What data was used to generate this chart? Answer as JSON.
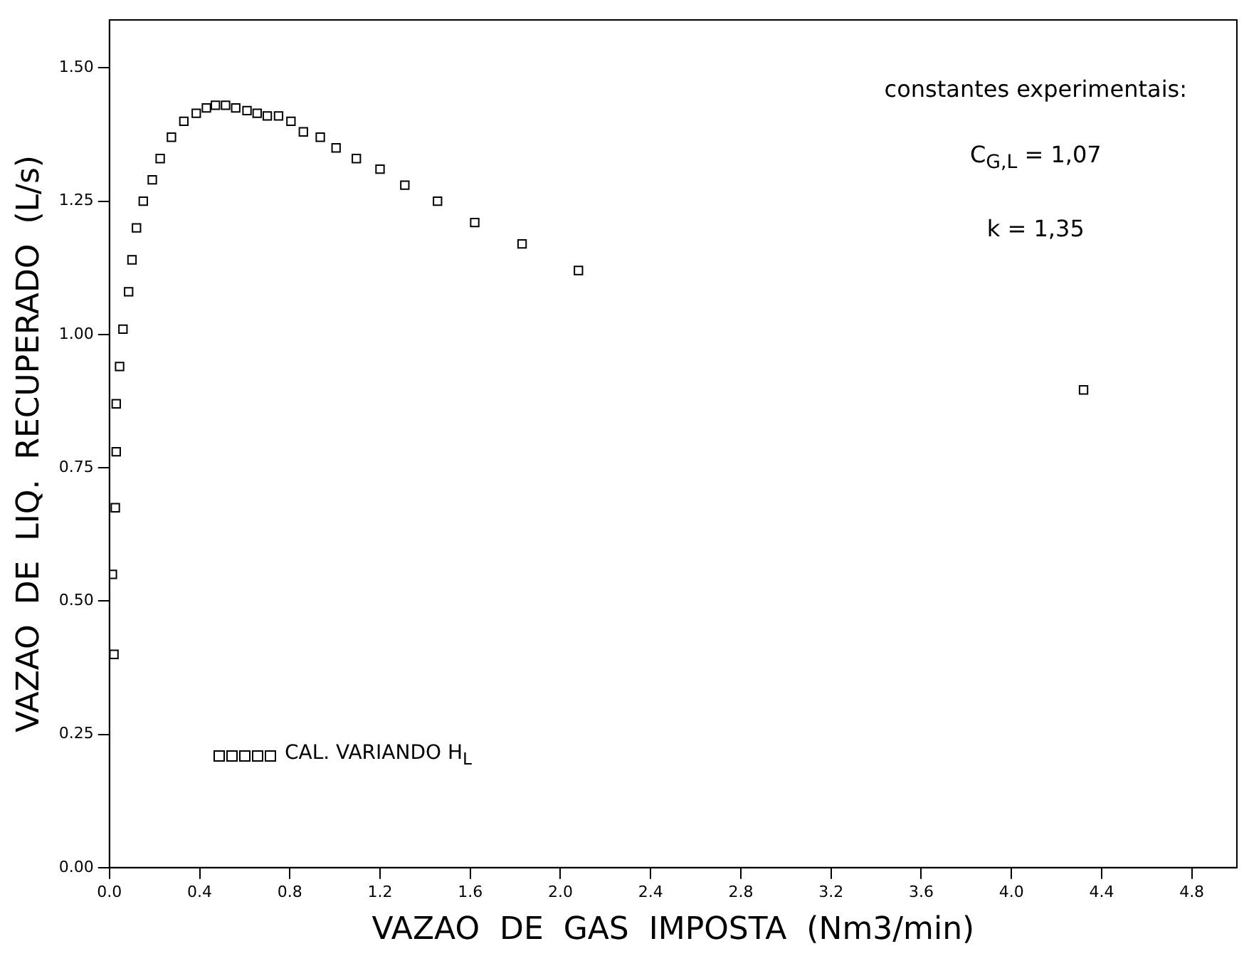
{
  "chart_data": {
    "type": "scatter",
    "xlabel": "VAZAO  DE  GAS  IMPOSTA  (Nm3/min)",
    "ylabel": "VAZAO  DE  LIQ.  RECUPERADO  (L/s)",
    "annotations": [
      "constantes experimentais:",
      "C$_{G,L}$  =  1,07",
      "k  =  1,35"
    ],
    "xlim": [
      0,
      5
    ],
    "ylim": [
      0,
      1.59
    ],
    "xticks": [
      {
        "value": 0,
        "label": "0.0"
      },
      0.4,
      0.8,
      1.2,
      1.6,
      {
        "value": 2,
        "label": "2.0"
      },
      2.4,
      2.8,
      3.2,
      3.6,
      {
        "value": 4,
        "label": "4.0"
      },
      4.4,
      4.8
    ],
    "yticks": [
      {
        "value": 0,
        "label": "0.00"
      },
      0.25,
      {
        "value": 0.5,
        "label": "0.50"
      },
      0.75,
      {
        "value": 1,
        "label": "1.00"
      },
      1.25,
      {
        "value": 1.5,
        "label": "1.50"
      }
    ],
    "grid": false,
    "legend": "bottom left",
    "marker": "square",
    "series": [
      {
        "name": "CAL. VARIANDO H$_{L}$",
        "color": "#000000",
        "x": [
          0.02,
          0.013,
          0.026,
          0.03,
          0.03,
          0.045,
          0.06,
          0.085,
          0.1,
          0.12,
          0.15,
          0.19,
          0.225,
          0.275,
          0.33,
          0.385,
          0.43,
          0.47,
          0.515,
          0.56,
          0.61,
          0.655,
          0.7,
          0.75,
          0.805,
          0.86,
          0.935,
          1.005,
          1.095,
          1.2,
          1.31,
          1.455,
          1.62,
          1.83,
          2.08,
          4.32
        ],
        "values": [
          0.4,
          0.55,
          0.675,
          0.78,
          0.87,
          0.94,
          1.01,
          1.08,
          1.14,
          1.2,
          1.25,
          1.29,
          1.33,
          1.37,
          1.4,
          1.415,
          1.425,
          1.43,
          1.43,
          1.425,
          1.42,
          1.415,
          1.41,
          1.41,
          1.4,
          1.38,
          1.37,
          1.35,
          1.33,
          1.31,
          1.28,
          1.25,
          1.21,
          1.17,
          1.12,
          0.896
        ]
      }
    ]
  }
}
